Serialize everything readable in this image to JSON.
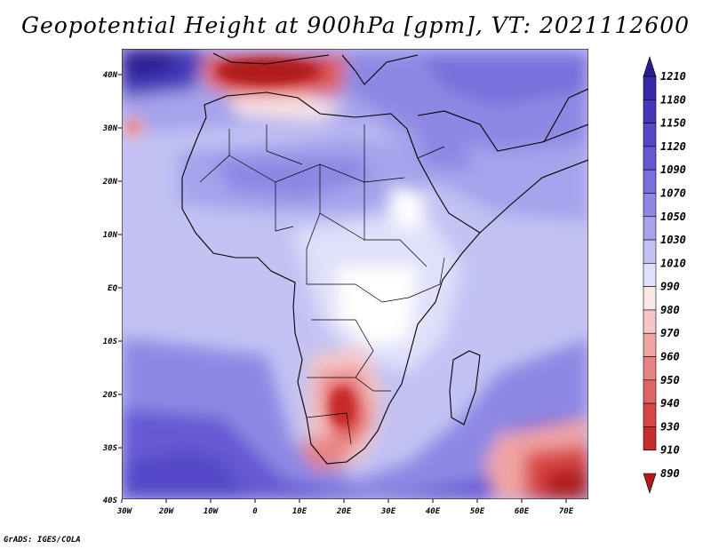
{
  "title": "Geopotential Height at 900hPa [gpm], VT: 2021112600",
  "credit": "GrADS: IGES/COLA",
  "map": {
    "lon_labels": [
      "30W",
      "20W",
      "10W",
      "0",
      "10E",
      "20E",
      "30E",
      "40E",
      "50E",
      "60E",
      "70E"
    ],
    "lat_labels": [
      "40N",
      "30N",
      "20N",
      "10N",
      "EQ",
      "10S",
      "20S",
      "30S",
      "40S"
    ],
    "lon_range": [
      -30,
      75
    ],
    "lat_range": [
      -40,
      44
    ]
  },
  "colorbar": {
    "levels": [
      "1210",
      "1180",
      "1150",
      "1120",
      "1090",
      "1070",
      "1050",
      "1030",
      "1010",
      "990",
      "980",
      "970",
      "960",
      "950",
      "940",
      "930",
      "910",
      "890"
    ],
    "colors": [
      "#2a1d8f",
      "#3728a8",
      "#4538b8",
      "#5547c7",
      "#6658d2",
      "#7a70dc",
      "#8e88e4",
      "#a6a3ec",
      "#c3c2f3",
      "#e0e0fa",
      "#fbe6e6",
      "#f6c6c6",
      "#f0a4a4",
      "#e98383",
      "#e26363",
      "#d84545",
      "#c72b2b",
      "#b01a1a"
    ]
  }
}
